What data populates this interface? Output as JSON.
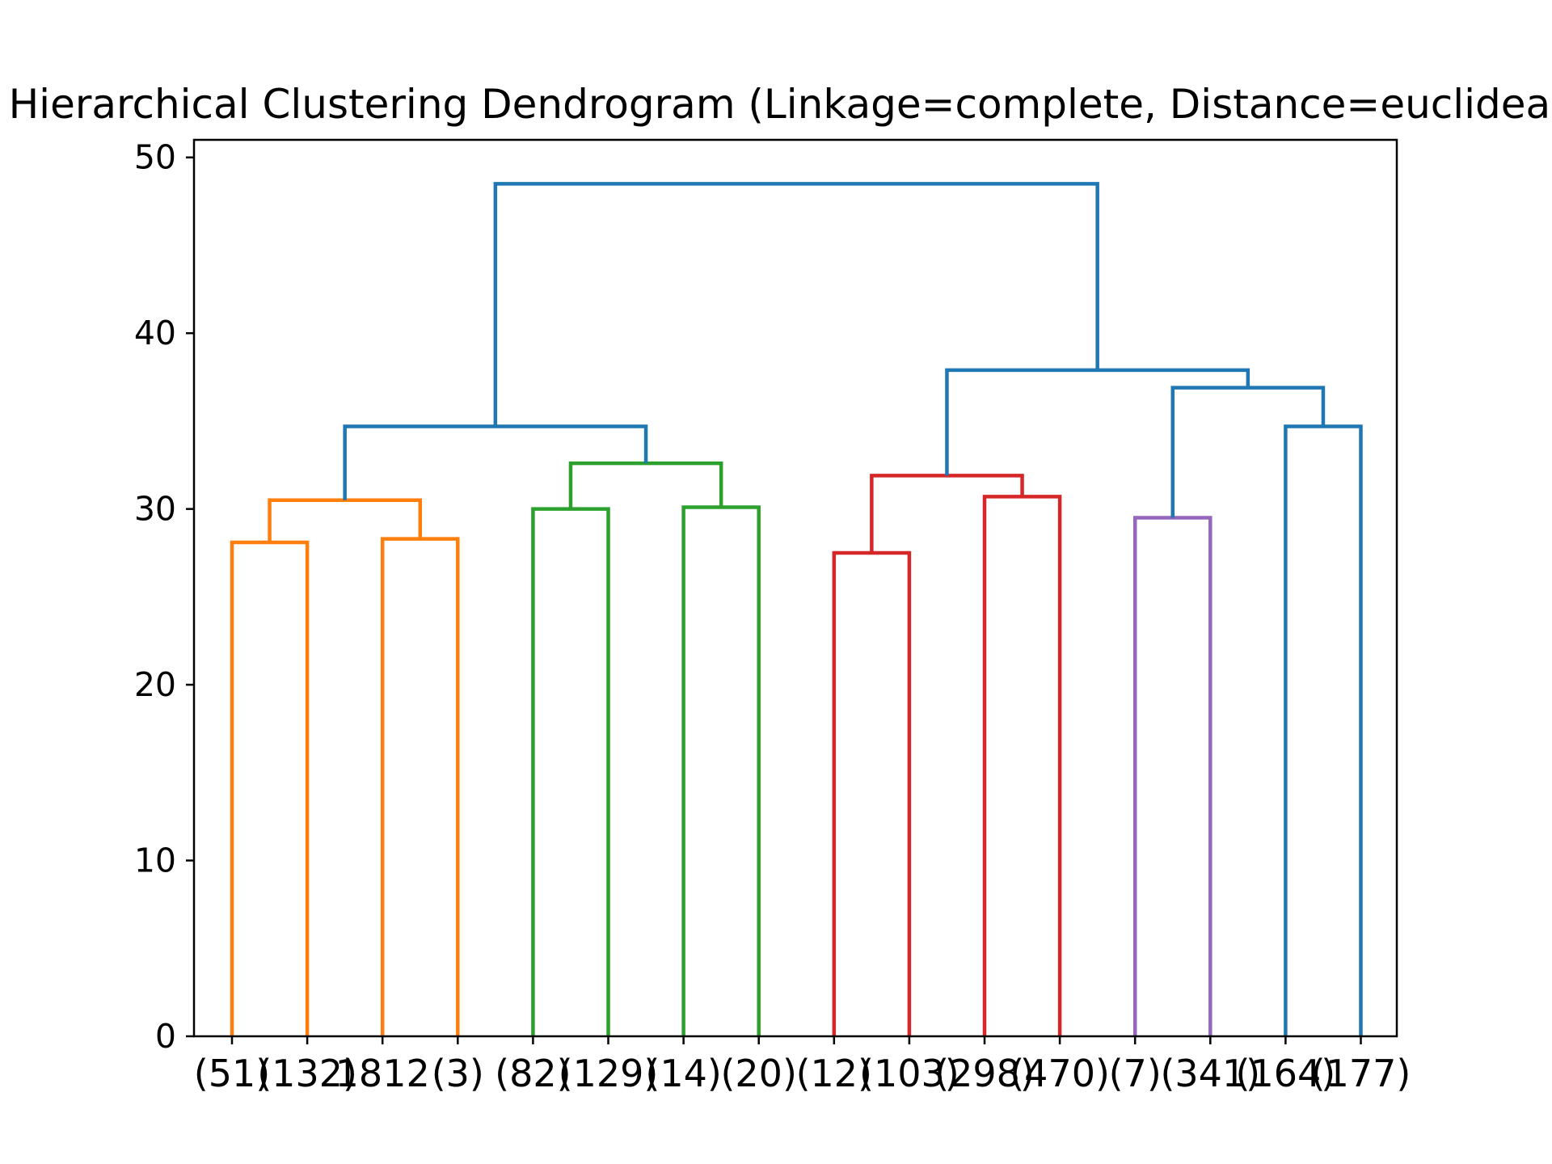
{
  "chart_data": {
    "type": "dendrogram",
    "title": "Hierarchical Clustering Dendrogram (Linkage=complete, Distance=euclidean)",
    "xlabel": "",
    "ylabel": "",
    "ylim": [
      0,
      51
    ],
    "yticks": [
      0,
      10,
      20,
      30,
      40,
      50
    ],
    "grid": false,
    "leaves": [
      "(51)",
      "(132)",
      "1812",
      "(3)",
      "(82)",
      "(129)",
      "(14)",
      "(20)",
      "(12)",
      "(103)",
      "(298)",
      "(470)",
      "(7)",
      "(341)",
      "(164)",
      "(177)"
    ],
    "links": [
      {
        "left": 0,
        "right": 1,
        "height": 28.1,
        "color": "#ff7f0e"
      },
      {
        "left": 2,
        "right": 3,
        "height": 28.3,
        "color": "#ff7f0e"
      },
      {
        "left": 16,
        "right": 17,
        "height": 30.5,
        "color": "#ff7f0e"
      },
      {
        "left": 4,
        "right": 5,
        "height": 30.0,
        "color": "#2ca02c"
      },
      {
        "left": 6,
        "right": 7,
        "height": 30.1,
        "color": "#2ca02c"
      },
      {
        "left": 19,
        "right": 20,
        "height": 32.6,
        "color": "#2ca02c"
      },
      {
        "left": 18,
        "right": 21,
        "height": 34.7,
        "color": "#1f77b4"
      },
      {
        "left": 8,
        "right": 9,
        "height": 27.5,
        "color": "#d62728"
      },
      {
        "left": 10,
        "right": 11,
        "height": 30.7,
        "color": "#d62728"
      },
      {
        "left": 23,
        "right": 24,
        "height": 31.9,
        "color": "#d62728"
      },
      {
        "left": 12,
        "right": 13,
        "height": 29.5,
        "color": "#9467bd"
      },
      {
        "left": 14,
        "right": 15,
        "height": 34.7,
        "color": "#1f77b4"
      },
      {
        "left": 26,
        "right": 27,
        "height": 36.9,
        "color": "#1f77b4"
      },
      {
        "left": 25,
        "right": 28,
        "height": 37.9,
        "color": "#1f77b4"
      },
      {
        "left": 22,
        "right": 29,
        "height": 48.5,
        "color": "#1f77b4"
      }
    ],
    "colors": {
      "orange": "#ff7f0e",
      "green": "#2ca02c",
      "red": "#d62728",
      "purple": "#9467bd",
      "blue": "#1f77b4"
    }
  }
}
